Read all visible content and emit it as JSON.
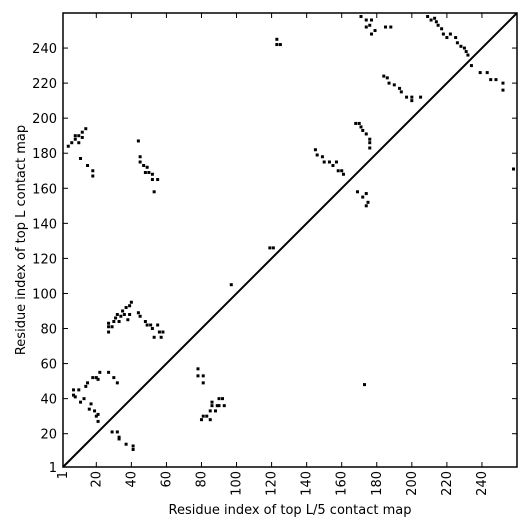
{
  "chart_data": {
    "type": "scatter",
    "xlabel": "Residue index of top L/5 contact map",
    "ylabel": "Residue index of top L contact map",
    "xlim": [
      1,
      260
    ],
    "ylim": [
      1,
      260
    ],
    "xticks": [
      1,
      20,
      40,
      60,
      80,
      100,
      120,
      140,
      160,
      180,
      200,
      220,
      240
    ],
    "yticks": [
      1,
      20,
      40,
      60,
      80,
      100,
      120,
      140,
      160,
      180,
      200,
      220,
      240
    ],
    "diagonal": true,
    "color": "#000000",
    "x": [
      4,
      6,
      8,
      8,
      10,
      12,
      12,
      14,
      10,
      11,
      15,
      18,
      18,
      44,
      45,
      45,
      47,
      49,
      48,
      50,
      52,
      52,
      53,
      55,
      27,
      27,
      27,
      29,
      30,
      31,
      32,
      33,
      34,
      35,
      36,
      37,
      38,
      39,
      40,
      39,
      44,
      45,
      48,
      49,
      51,
      52,
      53,
      55,
      56,
      58,
      57,
      168,
      170,
      171,
      172,
      174,
      176,
      176,
      176,
      169,
      172,
      174,
      175,
      174,
      145,
      146,
      149,
      150,
      153,
      155,
      157,
      160,
      161,
      158,
      123,
      123,
      125,
      119,
      121,
      97,
      171,
      174,
      177,
      176,
      177,
      179,
      185,
      188,
      174,
      184,
      186,
      187,
      190,
      193,
      194,
      197,
      200,
      200,
      205,
      209,
      211,
      213,
      214,
      215,
      217,
      218,
      220,
      222,
      225,
      226,
      228,
      230,
      231,
      232,
      234,
      239,
      243,
      245,
      248,
      252,
      252,
      258,
      7,
      7,
      8,
      10,
      11,
      13,
      14,
      15,
      16,
      17,
      19,
      20,
      21,
      21,
      21,
      22,
      27,
      30,
      32,
      18,
      20,
      29,
      32,
      33,
      33,
      37,
      41,
      41,
      78,
      78,
      81,
      81,
      80,
      81,
      83,
      85,
      85,
      86,
      86,
      88,
      89,
      90,
      90,
      92,
      93,
      173
    ],
    "y": [
      184,
      186,
      188,
      190,
      190,
      189,
      192,
      194,
      186,
      177,
      173,
      170,
      167,
      187,
      178,
      175,
      173,
      172,
      169,
      169,
      168,
      165,
      158,
      165,
      78,
      81,
      83,
      81,
      84,
      86,
      88,
      84,
      87,
      90,
      88,
      92,
      85,
      93,
      95,
      88,
      89,
      87,
      84,
      82,
      82,
      80,
      75,
      82,
      78,
      78,
      75,
      197,
      197,
      195,
      193,
      191,
      188,
      186,
      183,
      158,
      155,
      157,
      152,
      150,
      182,
      179,
      178,
      175,
      175,
      173,
      175,
      170,
      168,
      170,
      245,
      242,
      242,
      126,
      126,
      105,
      258,
      256,
      256,
      253,
      248,
      250,
      252,
      252,
      252,
      224,
      223,
      220,
      219,
      217,
      215,
      212,
      212,
      210,
      212,
      258,
      256,
      257,
      255,
      253,
      251,
      248,
      246,
      248,
      246,
      243,
      241,
      240,
      238,
      236,
      230,
      226,
      226,
      222,
      222,
      220,
      216,
      171,
      45,
      42,
      41,
      45,
      38,
      40,
      47,
      49,
      34,
      37,
      33,
      30,
      31,
      27,
      51,
      55,
      55,
      52,
      49,
      52,
      52,
      21,
      21,
      18,
      17,
      14,
      11,
      13,
      57,
      53,
      53,
      49,
      28,
      30,
      30,
      33,
      28,
      36,
      38,
      33,
      36,
      40,
      36,
      40,
      36,
      48
    ]
  }
}
